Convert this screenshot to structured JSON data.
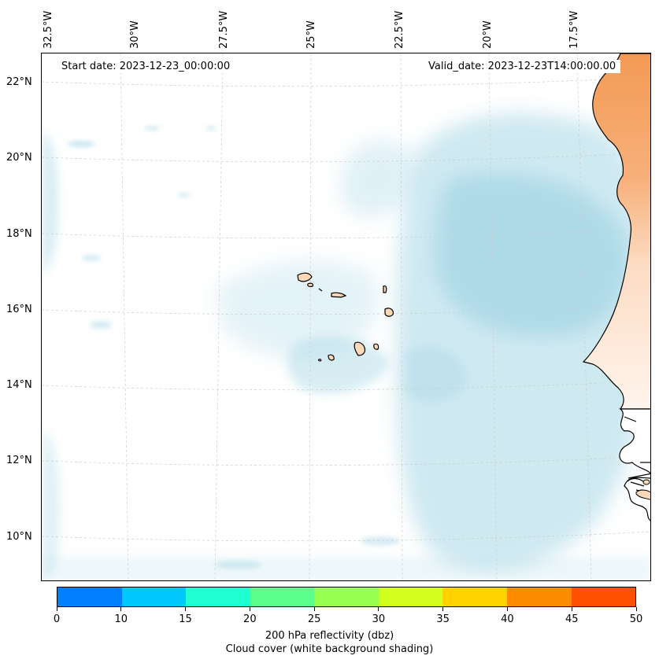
{
  "map": {
    "start_date_text": "Start date: 2023-12-23_00:00:00",
    "valid_date_text": "Valid_date: 2023-12-23T14:00:00.00",
    "lon_labels": [
      "32.5°W",
      "30°W",
      "27.5°W",
      "25°W",
      "22.5°W",
      "20°W",
      "17.5°W"
    ],
    "lat_labels": [
      "22°N",
      "20°N",
      "18°N",
      "16°N",
      "14°N",
      "12°N",
      "10°N"
    ],
    "extent": {
      "lon_min": -33.0,
      "lon_max": -16.2,
      "lat_min": 8.9,
      "lat_max": 22.8
    },
    "colors": {
      "cloud": "#a9d8e6",
      "land_high_reflectivity": "#f7a15e",
      "island_fill": "#fbd8b8",
      "coastline": "#000000",
      "gridline": "#cccccc"
    }
  },
  "colorbar": {
    "title_line1": "200 hPa reflectivity (dbz)",
    "title_line2": "Cloud cover (white background shading)",
    "ticks": [
      "0",
      "10",
      "15",
      "20",
      "25",
      "30",
      "35",
      "40",
      "45",
      "50"
    ],
    "colors": [
      "#0080ff",
      "#00c8ff",
      "#1effd2",
      "#5aff8c",
      "#96ff50",
      "#d2ff1e",
      "#ffd200",
      "#ff8c00",
      "#ff5000"
    ]
  }
}
